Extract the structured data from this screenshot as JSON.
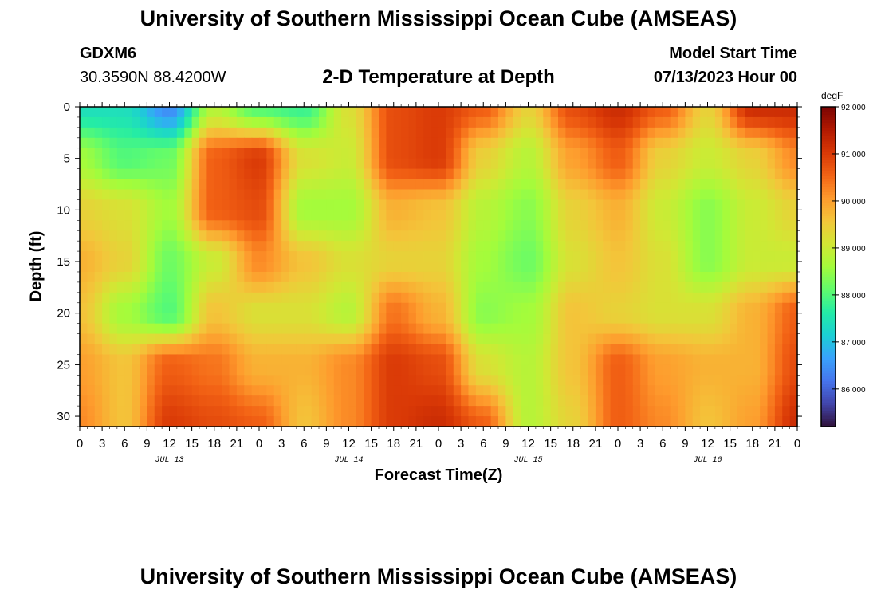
{
  "header": {
    "title": "University of Southern Mississippi Ocean Cube (AMSEAS)",
    "station": "GDXM6",
    "coords": "30.3590N  88.4200W",
    "subtitle": "2-D Temperature at Depth",
    "start_label": "Model Start Time",
    "start_value": "07/13/2023 Hour 00"
  },
  "footer": {
    "title": "University of Southern Mississippi Ocean Cube (AMSEAS)"
  },
  "chart_data": {
    "type": "heatmap",
    "title": "2-D Temperature at Depth",
    "xlabel": "Forecast Time(Z)",
    "ylabel": "Depth (ft)",
    "x_ticks": [
      "0",
      "3",
      "6",
      "9",
      "12",
      "15",
      "18",
      "21",
      "0",
      "3",
      "6",
      "9",
      "12",
      "15",
      "18",
      "21",
      "0",
      "3",
      "6",
      "9",
      "12",
      "15",
      "18",
      "21",
      "0",
      "3",
      "6",
      "9",
      "12",
      "15",
      "18",
      "21",
      "0"
    ],
    "x_hours": [
      0,
      3,
      6,
      9,
      12,
      15,
      18,
      21,
      24,
      27,
      30,
      33,
      36,
      39,
      42,
      45,
      48,
      51,
      54,
      57,
      60,
      63,
      66,
      69,
      72,
      75,
      78,
      81,
      84,
      87,
      90,
      93,
      96
    ],
    "x_range": [
      0,
      96
    ],
    "day_labels": [
      {
        "label": "JUL 13",
        "hour": 12
      },
      {
        "label": "JUL 14",
        "hour": 36
      },
      {
        "label": "JUL 15",
        "hour": 60
      },
      {
        "label": "JUL 16",
        "hour": 84
      }
    ],
    "y_ticks": [
      0,
      5,
      10,
      15,
      20,
      25,
      30
    ],
    "y_range": [
      0,
      31
    ],
    "depths": [
      0,
      5,
      10,
      15,
      20,
      25,
      31
    ],
    "hours": [
      0,
      6,
      12,
      18,
      24,
      30,
      36,
      42,
      48,
      54,
      60,
      66,
      72,
      78,
      84,
      90,
      96
    ],
    "values": [
      [
        87.4,
        87.4,
        86.4,
        88.8,
        88.0,
        87.8,
        89.2,
        90.8,
        91.0,
        90.6,
        89.4,
        90.8,
        91.2,
        90.6,
        89.4,
        91.2,
        91.2
      ],
      [
        88.6,
        88.0,
        88.2,
        90.6,
        91.0,
        89.2,
        89.0,
        90.8,
        91.0,
        89.4,
        88.8,
        90.0,
        90.6,
        89.4,
        89.0,
        89.4,
        90.2
      ],
      [
        89.4,
        89.2,
        88.6,
        90.6,
        90.8,
        88.6,
        88.6,
        89.8,
        89.6,
        88.8,
        88.4,
        89.4,
        89.8,
        89.0,
        88.4,
        89.0,
        89.4
      ],
      [
        89.8,
        89.4,
        88.2,
        89.0,
        90.2,
        89.6,
        89.2,
        89.4,
        89.4,
        88.6,
        88.2,
        89.2,
        89.6,
        89.2,
        88.4,
        89.0,
        89.0
      ],
      [
        89.6,
        88.6,
        88.0,
        89.6,
        89.2,
        89.2,
        88.8,
        90.4,
        89.8,
        88.4,
        88.6,
        89.6,
        89.4,
        89.2,
        89.2,
        89.8,
        90.6
      ],
      [
        90.0,
        89.6,
        90.6,
        90.4,
        89.8,
        89.8,
        90.2,
        91.0,
        90.8,
        89.2,
        88.8,
        89.6,
        90.6,
        90.0,
        89.8,
        89.8,
        90.8
      ],
      [
        90.2,
        89.6,
        91.0,
        90.8,
        90.6,
        89.6,
        90.2,
        91.0,
        91.2,
        90.6,
        88.8,
        89.4,
        90.6,
        90.2,
        89.6,
        90.0,
        91.2
      ]
    ],
    "colorbar": {
      "unit": "degF",
      "min": 85.2,
      "max": 92.0,
      "tick_labels": [
        "92.000",
        "91.000",
        "90.000",
        "89.000",
        "88.000",
        "87.000",
        "86.000"
      ],
      "tick_values": [
        92,
        91,
        90,
        89,
        88,
        87,
        86
      ],
      "colors": [
        "#30123b",
        "#4145ab",
        "#4675ed",
        "#39a2fc",
        "#1bcfd4",
        "#24eca6",
        "#61fc6c",
        "#a4fc3b",
        "#d1e834",
        "#f3c63a",
        "#fe9b2d",
        "#f36315",
        "#d93806",
        "#b11901",
        "#7a0403"
      ]
    }
  }
}
